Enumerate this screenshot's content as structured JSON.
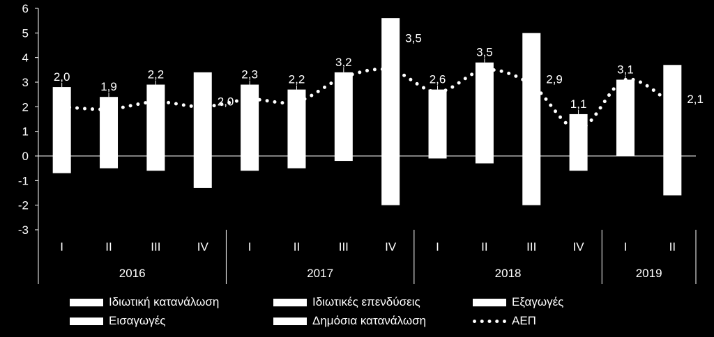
{
  "chart_data": {
    "type": "bar",
    "categories": [
      "I",
      "II",
      "III",
      "IV",
      "I",
      "II",
      "III",
      "IV",
      "I",
      "II",
      "III",
      "IV",
      "I",
      "II"
    ],
    "years": [
      {
        "label": "2016",
        "span": 4
      },
      {
        "label": "2017",
        "span": 4
      },
      {
        "label": "2018",
        "span": 4
      },
      {
        "label": "2019",
        "span": 2
      }
    ],
    "bars": [
      {
        "top": 2.8,
        "bottom": -0.7
      },
      {
        "top": 2.4,
        "bottom": -0.5
      },
      {
        "top": 2.9,
        "bottom": -0.6
      },
      {
        "top": 3.4,
        "bottom": -1.3
      },
      {
        "top": 2.9,
        "bottom": -0.6
      },
      {
        "top": 2.7,
        "bottom": -0.5
      },
      {
        "top": 3.4,
        "bottom": -0.2
      },
      {
        "top": 5.6,
        "bottom": -2.0
      },
      {
        "top": 2.7,
        "bottom": -0.1
      },
      {
        "top": 3.8,
        "bottom": -0.3
      },
      {
        "top": 5.0,
        "bottom": -2.0
      },
      {
        "top": 1.7,
        "bottom": -0.6
      },
      {
        "top": 3.1,
        "bottom": 0.0
      },
      {
        "top": 3.7,
        "bottom": -1.6
      }
    ],
    "gdp": {
      "name": "ΑΕΠ",
      "values": [
        2.0,
        1.9,
        2.2,
        2.0,
        2.3,
        2.2,
        3.2,
        3.5,
        2.6,
        3.5,
        2.9,
        1.1,
        3.1,
        2.1
      ],
      "labels": [
        "2,0",
        "1,9",
        "2,2",
        "2,0",
        "2,3",
        "2,2",
        "3,2",
        "3,5",
        "2,6",
        "3,5",
        "2,9",
        "1,1",
        "3,1",
        "2,1"
      ]
    },
    "ylim": [
      -3,
      6
    ],
    "yticks": [
      "-3",
      "-2",
      "-1",
      "0",
      "1",
      "2",
      "3",
      "4",
      "5",
      "6"
    ],
    "legend": [
      "Ιδιωτική κατανάλωση",
      "Ιδιωτικές επενδύσεις",
      "Εξαγωγές",
      "Εισαγωγές",
      "Δημόσια κατανάλωση",
      "ΑΕΠ"
    ],
    "colors": {
      "background": "#000000",
      "foreground": "#ffffff"
    }
  }
}
